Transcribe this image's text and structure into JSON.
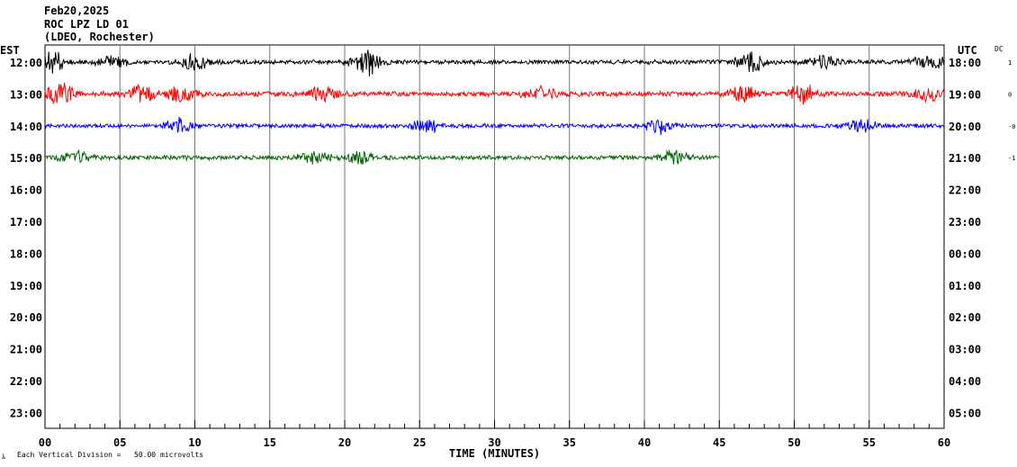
{
  "header": {
    "date": "Feb20,2025",
    "station": "ROC LPZ LD 01",
    "network": "(LDEO, Rochester)"
  },
  "chart_data": {
    "type": "line",
    "title": "Feb20,2025",
    "xlabel": "TIME (MINUTES)",
    "left_axis_title": "EST",
    "right_axis_title": "UTC",
    "dc_title": "DC",
    "xlim": [
      0,
      60
    ],
    "x_ticks": [
      "00",
      "05",
      "10",
      "15",
      "20",
      "25",
      "30",
      "35",
      "40",
      "45",
      "50",
      "55",
      "60"
    ],
    "rows_est": [
      "12:00",
      "13:00",
      "14:00",
      "15:00",
      "16:00",
      "17:00",
      "18:00",
      "19:00",
      "20:00",
      "21:00",
      "22:00",
      "23:00"
    ],
    "rows_utc": [
      "18:00",
      "19:00",
      "20:00",
      "21:00",
      "22:00",
      "23:00",
      "00:00",
      "01:00",
      "02:00",
      "03:00",
      "04:00",
      "05:00"
    ],
    "footnote": "Each Vertical Division =   50.00 microvolts",
    "footnote_mark": "ﾑ",
    "series": [
      {
        "row": 0,
        "color": "#000000",
        "dc": "1",
        "x_end": 60,
        "amp": 0.5,
        "bursts": [
          [
            0.5,
            2.2
          ],
          [
            4.5,
            1.4
          ],
          [
            10.0,
            2.0
          ],
          [
            21.5,
            2.8
          ],
          [
            47.0,
            2.3
          ],
          [
            52.0,
            1.4
          ],
          [
            59.0,
            1.6
          ]
        ]
      },
      {
        "row": 1,
        "color": "#ff0000",
        "dc": "0",
        "x_end": 60,
        "amp": 0.55,
        "bursts": [
          [
            1.0,
            2.5
          ],
          [
            6.5,
            1.8
          ],
          [
            9.0,
            1.6
          ],
          [
            18.5,
            1.5
          ],
          [
            33.0,
            1.8
          ],
          [
            46.5,
            1.8
          ],
          [
            50.5,
            2.0
          ],
          [
            59.0,
            1.5
          ]
        ]
      },
      {
        "row": 2,
        "color": "#0000ff",
        "dc": "-0",
        "x_end": 60,
        "amp": 0.45,
        "bursts": [
          [
            9.0,
            1.5
          ],
          [
            25.5,
            1.4
          ],
          [
            41.0,
            1.5
          ],
          [
            54.5,
            1.3
          ]
        ]
      },
      {
        "row": 3,
        "color": "#006400",
        "dc": "-1",
        "x_end": 45,
        "amp": 0.5,
        "bursts": [
          [
            2.0,
            1.3
          ],
          [
            18.0,
            1.5
          ],
          [
            21.0,
            1.3
          ],
          [
            42.0,
            1.4
          ]
        ]
      }
    ]
  }
}
